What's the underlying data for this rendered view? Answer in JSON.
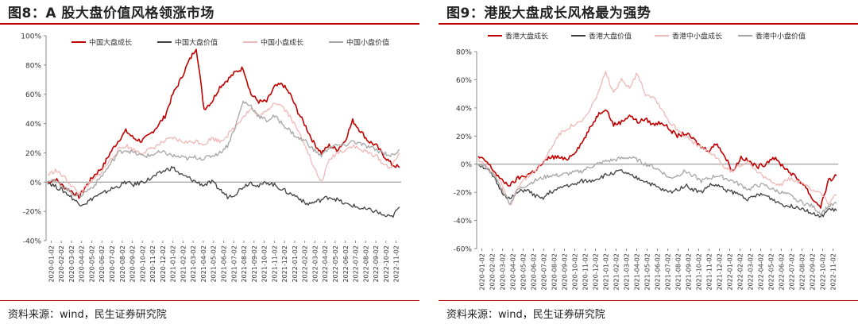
{
  "panels": [
    {
      "title": "图8：A 股大盘价值风格领涨市场",
      "source": "资料来源：wind，民生证券研究院"
    },
    {
      "title": "图9：港股大盘成长风格最为强势",
      "source": "资料来源：wind，民生证券研究院"
    }
  ],
  "colors": {
    "rule": "#c00000",
    "large_growth": "#c00000",
    "large_value": "#404040",
    "small_growth": "#f0b8b8",
    "small_value": "#a6a6a6"
  },
  "chart_data": [
    {
      "type": "line",
      "legend": [
        "中国大盘成长",
        "中国大盘价值",
        "中国小盘成长",
        "中国小盘价值"
      ],
      "legend_position": "top",
      "ylim": [
        -40,
        100
      ],
      "y_ticks": [
        "100%",
        "80%",
        "60%",
        "40%",
        "20%",
        "0%",
        "-20%",
        "-40%"
      ],
      "x_ticks": [
        "2020-01-02",
        "2020-02-02",
        "2020-03-02",
        "2020-04-02",
        "2020-05-02",
        "2020-06-02",
        "2020-07-02",
        "2020-08-02",
        "2020-09-02",
        "2020-10-02",
        "2020-11-02",
        "2020-12-02",
        "2021-01-02",
        "2021-02-02",
        "2021-03-02",
        "2021-04-02",
        "2021-05-02",
        "2021-06-02",
        "2021-07-02",
        "2021-08-02",
        "2021-09-02",
        "2021-10-02",
        "2021-11-02",
        "2021-12-02",
        "2022-01-02",
        "2022-02-02",
        "2022-03-02",
        "2022-04-02",
        "2022-05-02",
        "2022-06-02",
        "2022-07-02",
        "2022-08-02",
        "2022-09-02",
        "2022-10-02",
        "2022-11-02"
      ],
      "x_tick_step": 1,
      "grid": false,
      "series": [
        {
          "name": "中国大盘成长",
          "values": [
            0,
            2,
            -3,
            -6,
            -10,
            -2,
            5,
            10,
            20,
            28,
            35,
            30,
            28,
            32,
            38,
            45,
            60,
            70,
            82,
            92,
            50,
            55,
            65,
            70,
            75,
            78,
            60,
            55,
            55,
            65,
            67,
            60,
            48,
            38,
            27,
            20,
            25,
            22,
            28,
            42,
            35,
            28,
            25,
            18,
            12,
            10
          ]
        },
        {
          "name": "中国大盘价值",
          "values": [
            0,
            -3,
            -6,
            -10,
            -15,
            -14,
            -10,
            -8,
            -5,
            -3,
            0,
            -2,
            0,
            2,
            5,
            8,
            10,
            5,
            3,
            0,
            -2,
            0,
            -5,
            -10,
            -8,
            -3,
            0,
            -3,
            0,
            -2,
            -5,
            -8,
            -10,
            -15,
            -14,
            -12,
            -10,
            -12,
            -15,
            -16,
            -18,
            -19,
            -20,
            -23,
            -24,
            -17
          ]
        },
        {
          "name": "中国小盘成长",
          "values": [
            5,
            8,
            4,
            -2,
            -8,
            -3,
            2,
            8,
            15,
            22,
            25,
            22,
            20,
            22,
            25,
            28,
            30,
            28,
            27,
            28,
            26,
            30,
            28,
            32,
            38,
            45,
            50,
            45,
            48,
            55,
            52,
            45,
            35,
            25,
            10,
            0,
            15,
            20,
            22,
            25,
            22,
            20,
            18,
            12,
            10,
            20
          ]
        },
        {
          "name": "中国小盘价值",
          "values": [
            2,
            0,
            -3,
            -7,
            -10,
            -6,
            -2,
            5,
            12,
            20,
            22,
            20,
            18,
            18,
            20,
            20,
            18,
            17,
            16,
            17,
            16,
            18,
            20,
            25,
            38,
            55,
            52,
            45,
            42,
            45,
            40,
            35,
            30,
            28,
            22,
            18,
            24,
            25,
            25,
            28,
            26,
            24,
            22,
            20,
            18,
            22
          ]
        }
      ]
    },
    {
      "type": "line",
      "legend": [
        "香港大盘成长",
        "香港大盘价值",
        "香港中小盘成长",
        "香港中小盘价值"
      ],
      "legend_position": "top",
      "ylim": [
        -60,
        80
      ],
      "y_ticks": [
        "80%",
        "60%",
        "40%",
        "20%",
        "0%",
        "-20%",
        "-40%",
        "-60%"
      ],
      "x_ticks": [
        "2020-01-02",
        "2020-02-02",
        "2020-03-02",
        "2020-04-02",
        "2020-05-02",
        "2020-06-02",
        "2020-07-02",
        "2020-08-02",
        "2020-09-02",
        "2020-10-02",
        "2020-11-02",
        "2020-12-02",
        "2021-01-02",
        "2021-02-02",
        "2021-03-02",
        "2021-04-02",
        "2021-05-02",
        "2021-06-02",
        "2021-07-02",
        "2021-08-02",
        "2021-09-02",
        "2021-10-02",
        "2021-11-02",
        "2021-12-02",
        "2022-01-02",
        "2022-02-02",
        "2022-03-02",
        "2022-04-02",
        "2022-05-02",
        "2022-06-02",
        "2022-07-02",
        "2022-08-02",
        "2022-09-02",
        "2022-10-02",
        "2022-11-02"
      ],
      "x_tick_step": 1,
      "grid": false,
      "series": [
        {
          "name": "香港大盘成长",
          "values": [
            5,
            2,
            -5,
            -12,
            -15,
            -10,
            -8,
            -5,
            0,
            5,
            5,
            3,
            8,
            15,
            25,
            35,
            40,
            28,
            30,
            35,
            30,
            32,
            28,
            30,
            25,
            20,
            22,
            18,
            12,
            10,
            15,
            5,
            -5,
            5,
            2,
            -2,
            0,
            5,
            0,
            -5,
            -10,
            -15,
            -25,
            -30,
            -12,
            -8
          ]
        },
        {
          "name": "香港大盘价值",
          "values": [
            0,
            -3,
            -10,
            -20,
            -25,
            -20,
            -18,
            -22,
            -25,
            -20,
            -18,
            -15,
            -15,
            -12,
            -12,
            -10,
            -8,
            -6,
            -5,
            -8,
            -10,
            -12,
            -15,
            -18,
            -20,
            -18,
            -15,
            -18,
            -20,
            -15,
            -15,
            -18,
            -20,
            -22,
            -25,
            -22,
            -22,
            -25,
            -28,
            -30,
            -30,
            -32,
            -35,
            -38,
            -32,
            -33
          ]
        },
        {
          "name": "香港中小盘成长",
          "values": [
            3,
            0,
            -8,
            -15,
            -30,
            -15,
            -10,
            -5,
            0,
            10,
            20,
            25,
            28,
            30,
            38,
            50,
            65,
            50,
            60,
            55,
            65,
            50,
            48,
            40,
            30,
            25,
            20,
            15,
            12,
            8,
            5,
            -3,
            -5,
            0,
            2,
            -5,
            -10,
            -12,
            -15,
            -10,
            -12,
            -15,
            -18,
            -20,
            -28,
            -22
          ]
        },
        {
          "name": "香港中小盘价值",
          "values": [
            0,
            -2,
            -8,
            -18,
            -28,
            -18,
            -15,
            -12,
            -10,
            -8,
            -8,
            -7,
            -6,
            -5,
            -2,
            0,
            2,
            3,
            4,
            5,
            3,
            0,
            -2,
            -5,
            -10,
            -8,
            -5,
            -8,
            -12,
            -10,
            -8,
            -10,
            -12,
            -15,
            -18,
            -15,
            -15,
            -18,
            -20,
            -22,
            -25,
            -28,
            -30,
            -35,
            -30,
            -28
          ]
        }
      ]
    }
  ]
}
